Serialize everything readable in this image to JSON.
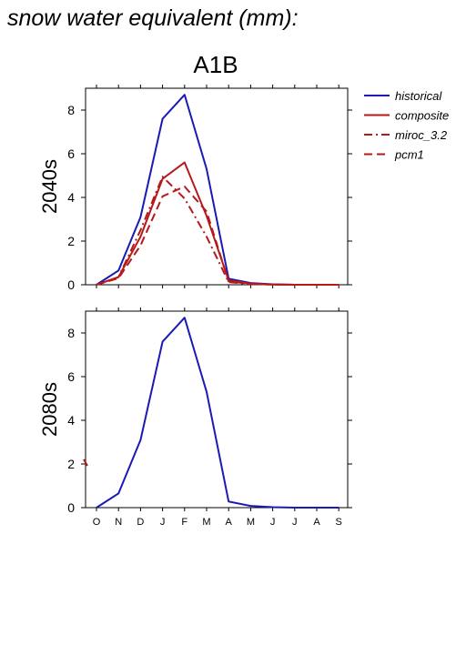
{
  "figure": {
    "title": "snow water equivalent (mm):",
    "scenario": "A1B"
  },
  "colors": {
    "historical": "#1a1ab4",
    "composite": "#b41a1a",
    "miroc_3.2": "#b41a1a",
    "pcm1": "#b41a1a"
  },
  "legend": {
    "placement": "right",
    "entries": [
      {
        "label": "historical",
        "style": "solid"
      },
      {
        "label": "composite",
        "style": "solid"
      },
      {
        "label": "miroc_3.2",
        "style": "dashdot"
      },
      {
        "label": "pcm1",
        "style": "dashed"
      }
    ]
  },
  "chart_data": [
    {
      "type": "line",
      "panel_label": "2040s",
      "categories": [
        "O",
        "N",
        "D",
        "J",
        "F",
        "M",
        "A",
        "M",
        "J",
        "J",
        "A",
        "S"
      ],
      "ylim": [
        0,
        9
      ],
      "yticks": [
        0,
        2,
        4,
        6,
        8
      ],
      "series": [
        {
          "name": "historical",
          "style": "solid",
          "values": [
            0,
            0.65,
            3.1,
            7.6,
            8.7,
            5.3,
            0.28,
            0.08,
            0.02,
            0,
            0,
            0
          ]
        },
        {
          "name": "composite",
          "style": "solid",
          "values": [
            0,
            0.35,
            2.2,
            4.85,
            5.6,
            3.15,
            0.2,
            0.05,
            0.01,
            0,
            0,
            0
          ]
        },
        {
          "name": "miroc_3.2",
          "style": "dashdot",
          "values": [
            0,
            0.35,
            2.5,
            4.95,
            3.95,
            2.2,
            0.12,
            0.03,
            0.01,
            0,
            0,
            0
          ]
        },
        {
          "name": "pcm1",
          "style": "dashed",
          "values": [
            0,
            0.3,
            1.8,
            4.05,
            4.5,
            3.35,
            0.15,
            0.04,
            0.01,
            0,
            0,
            0
          ]
        }
      ]
    },
    {
      "type": "line",
      "panel_label": "2080s",
      "categories": [
        "O",
        "N",
        "D",
        "J",
        "F",
        "M",
        "A",
        "M",
        "J",
        "J",
        "A",
        "S"
      ],
      "xtick_labels": [
        "O",
        "N",
        "D",
        "J",
        "F",
        "M",
        "A",
        "M",
        "J",
        "J",
        "A",
        "S"
      ],
      "ylim": [
        0,
        9
      ],
      "yticks": [
        0,
        2,
        4,
        6,
        8
      ],
      "series": [
        {
          "name": "historical",
          "style": "solid",
          "values": [
            0,
            0.65,
            3.1,
            7.6,
            8.7,
            5.3,
            0.28,
            0.08,
            0.02,
            0,
            0,
            0
          ]
        }
      ]
    }
  ]
}
